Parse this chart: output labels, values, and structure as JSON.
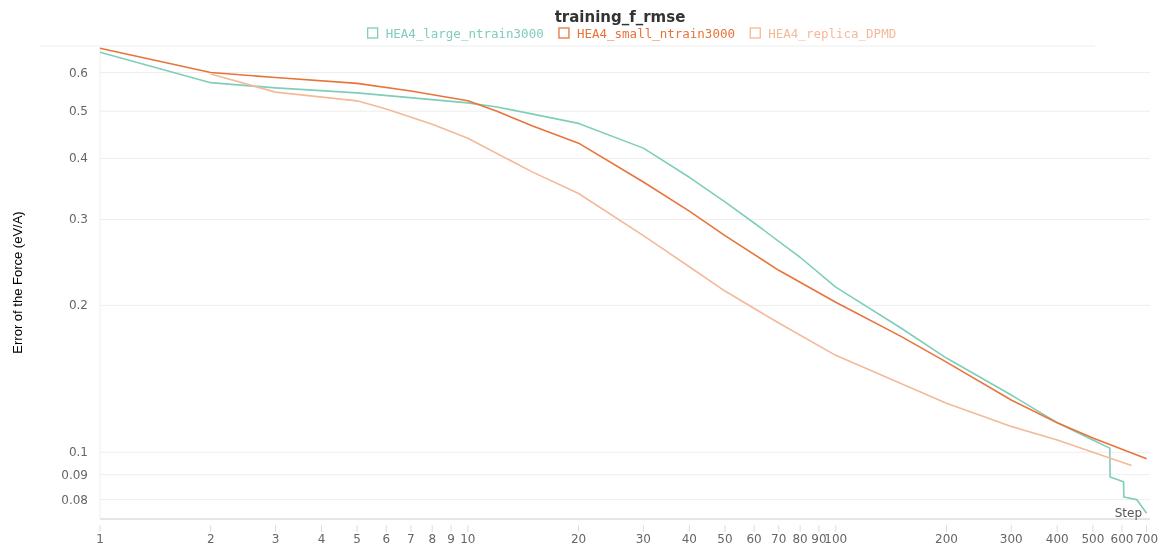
{
  "chart_data": {
    "type": "line",
    "title": "training_f_rmse",
    "xlabel": "Step",
    "ylabel": "Error of the Force (eV/A)",
    "log": "xy",
    "grid": "y",
    "legend": "top",
    "line_style": "solid",
    "marker": "none",
    "xlim": [
      1,
      715
    ],
    "ylim": [
      0.073,
      0.68
    ],
    "xticks": [
      1,
      2,
      3,
      4,
      5,
      6,
      7,
      8,
      9,
      10,
      20,
      30,
      40,
      50,
      60,
      70,
      80,
      90,
      100,
      200,
      300,
      400,
      500,
      600,
      700
    ],
    "yticks": [
      0.08,
      0.09,
      0.1,
      0.2,
      0.3,
      0.4,
      0.5,
      0.6
    ],
    "series": [
      {
        "name": "HEA4_large_ntrain3000",
        "color": "#7fcdbb",
        "x": [
          1,
          2,
          3,
          5,
          10,
          12,
          20,
          30,
          40,
          50,
          60,
          80,
          100,
          150,
          200,
          300,
          400,
          500,
          556,
          557,
          606,
          607,
          658,
          700
        ],
        "values": [
          0.66,
          0.572,
          0.558,
          0.545,
          0.52,
          0.51,
          0.472,
          0.42,
          0.366,
          0.326,
          0.295,
          0.251,
          0.218,
          0.18,
          0.156,
          0.131,
          0.115,
          0.106,
          0.102,
          0.089,
          0.087,
          0.081,
          0.08,
          0.075
        ]
      },
      {
        "name": "HEA4_small_ntrain3000",
        "color": "#e8743b",
        "x": [
          1,
          2,
          3,
          5,
          7,
          10,
          12,
          15,
          20,
          30,
          40,
          50,
          70,
          100,
          150,
          200,
          300,
          400,
          500,
          700
        ],
        "values": [
          0.673,
          0.6,
          0.586,
          0.57,
          0.55,
          0.525,
          0.5,
          0.466,
          0.43,
          0.358,
          0.312,
          0.278,
          0.236,
          0.203,
          0.173,
          0.153,
          0.128,
          0.115,
          0.107,
          0.097
        ]
      },
      {
        "name": "HEA4_replica_DPMD",
        "color": "#f4b99a",
        "x": [
          2,
          3,
          5,
          6,
          8,
          10,
          15,
          20,
          30,
          40,
          50,
          70,
          100,
          200,
          300,
          400,
          637
        ],
        "values": [
          0.596,
          0.547,
          0.525,
          0.505,
          0.47,
          0.44,
          0.375,
          0.339,
          0.278,
          0.24,
          0.214,
          0.184,
          0.158,
          0.126,
          0.113,
          0.106,
          0.094
        ]
      }
    ]
  }
}
